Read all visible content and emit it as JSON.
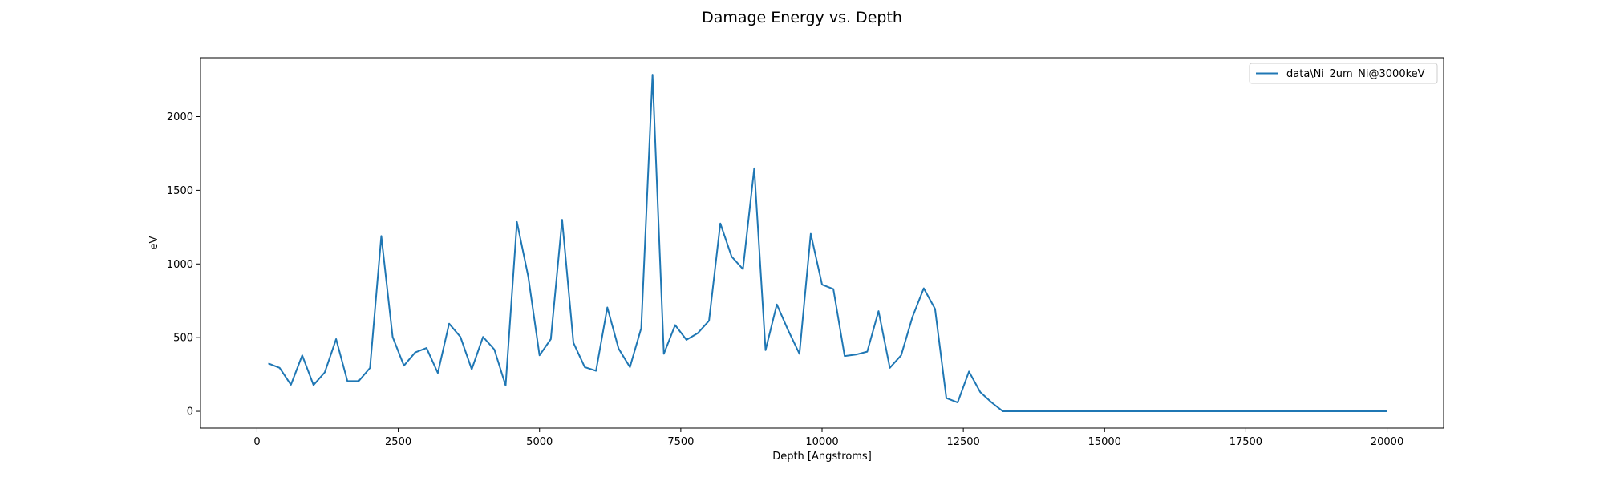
{
  "chart_data": {
    "type": "line",
    "title": "Damage Energy vs. Depth",
    "xlabel": "Depth [Angstroms]",
    "ylabel": "eV",
    "xlim": [
      -1000,
      21000
    ],
    "ylim": [
      -114,
      2400
    ],
    "xticks": [
      0,
      2500,
      5000,
      7500,
      10000,
      12500,
      15000,
      17500,
      20000
    ],
    "xtick_labels": [
      "0",
      "2500",
      "5000",
      "7500",
      "10000",
      "12500",
      "15000",
      "17500",
      "20000"
    ],
    "yticks": [
      0,
      500,
      1000,
      1500,
      2000
    ],
    "ytick_labels": [
      "0",
      "500",
      "1000",
      "1500",
      "2000"
    ],
    "grid": false,
    "legend": {
      "position": "top-right"
    },
    "series": [
      {
        "name": "data\\Ni_2um_Ni@3000keV",
        "color": "#1f77b4",
        "x": [
          200,
          400,
          600,
          800,
          1000,
          1200,
          1400,
          1600,
          1800,
          2000,
          2200,
          2400,
          2600,
          2800,
          3000,
          3200,
          3400,
          3600,
          3800,
          4000,
          4200,
          4400,
          4600,
          4800,
          5000,
          5200,
          5400,
          5600,
          5800,
          6000,
          6200,
          6400,
          6600,
          6800,
          7000,
          7200,
          7400,
          7600,
          7800,
          8000,
          8200,
          8400,
          8600,
          8800,
          9000,
          9200,
          9400,
          9600,
          9800,
          10000,
          10200,
          10400,
          10600,
          10800,
          11000,
          11200,
          11400,
          11600,
          11800,
          12000,
          12200,
          12400,
          12600,
          12800,
          13000,
          13200,
          13400,
          13600,
          13800,
          14000,
          14200,
          14400,
          14600,
          14800,
          15000,
          15200,
          15400,
          15600,
          15800,
          16000,
          16200,
          16400,
          16600,
          16800,
          17000,
          17200,
          17400,
          17600,
          17800,
          18000,
          18200,
          18400,
          18600,
          18800,
          19000,
          19200,
          19400,
          19600,
          19800,
          20000
        ],
        "y": [
          325,
          295,
          180,
          380,
          178,
          265,
          490,
          205,
          205,
          295,
          1190,
          505,
          310,
          400,
          430,
          260,
          595,
          505,
          285,
          505,
          420,
          175,
          1285,
          915,
          380,
          490,
          1300,
          465,
          300,
          275,
          705,
          425,
          300,
          565,
          2285,
          390,
          585,
          485,
          530,
          615,
          1275,
          1050,
          965,
          1650,
          415,
          725,
          550,
          390,
          1205,
          860,
          830,
          375,
          385,
          405,
          680,
          295,
          380,
          640,
          835,
          695,
          90,
          60,
          270,
          130,
          60,
          0,
          0,
          0,
          0,
          0,
          0,
          0,
          0,
          0,
          0,
          0,
          0,
          0,
          0,
          0,
          0,
          0,
          0,
          0,
          0,
          0,
          0,
          0,
          0,
          0,
          0,
          0,
          0,
          0,
          0,
          0,
          0,
          0,
          0,
          0
        ]
      }
    ]
  }
}
